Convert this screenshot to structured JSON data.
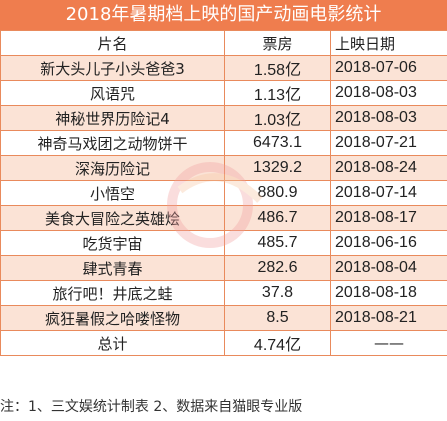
{
  "title": "2018年暑期档上映的国产动画电影统计",
  "headers": [
    "片名",
    "票房",
    "上映日期"
  ],
  "rows": [
    {
      "film": "新大头儿子小头爸爸3",
      "box": "1.58亿",
      "date": "2018-07-06"
    },
    {
      "film": "风语咒",
      "box": "1.13亿",
      "date": "2018-08-03"
    },
    {
      "film": "神秘世界历险记4",
      "box": "1.03亿",
      "date": "2018-08-03"
    },
    {
      "film": "神奇马戏团之动物饼干",
      "box": "6473.1",
      "date": "2018-07-21"
    },
    {
      "film": "深海历险记",
      "box": "1329.2",
      "date": "2018-08-24"
    },
    {
      "film": "小悟空",
      "box": "880.9",
      "date": "2018-07-14"
    },
    {
      "film": "美食大冒险之英雄烩",
      "box": "486.7",
      "date": "2018-08-17"
    },
    {
      "film": "吃货宇宙",
      "box": "485.7",
      "date": "2018-06-16"
    },
    {
      "film": "肆式青春",
      "box": "282.6",
      "date": "2018-08-04"
    },
    {
      "film": "旅行吧！井底之蛙",
      "box": "37.8",
      "date": "2018-08-18"
    },
    {
      "film": "疯狂暑假之哈喽怪物",
      "box": "8.5",
      "date": "2018-08-21"
    }
  ],
  "total": {
    "label": "总计",
    "box": "4.74亿",
    "date": "——"
  },
  "note": "注：1、三文娱统计制表 2、数据来自猫眼专业版"
}
